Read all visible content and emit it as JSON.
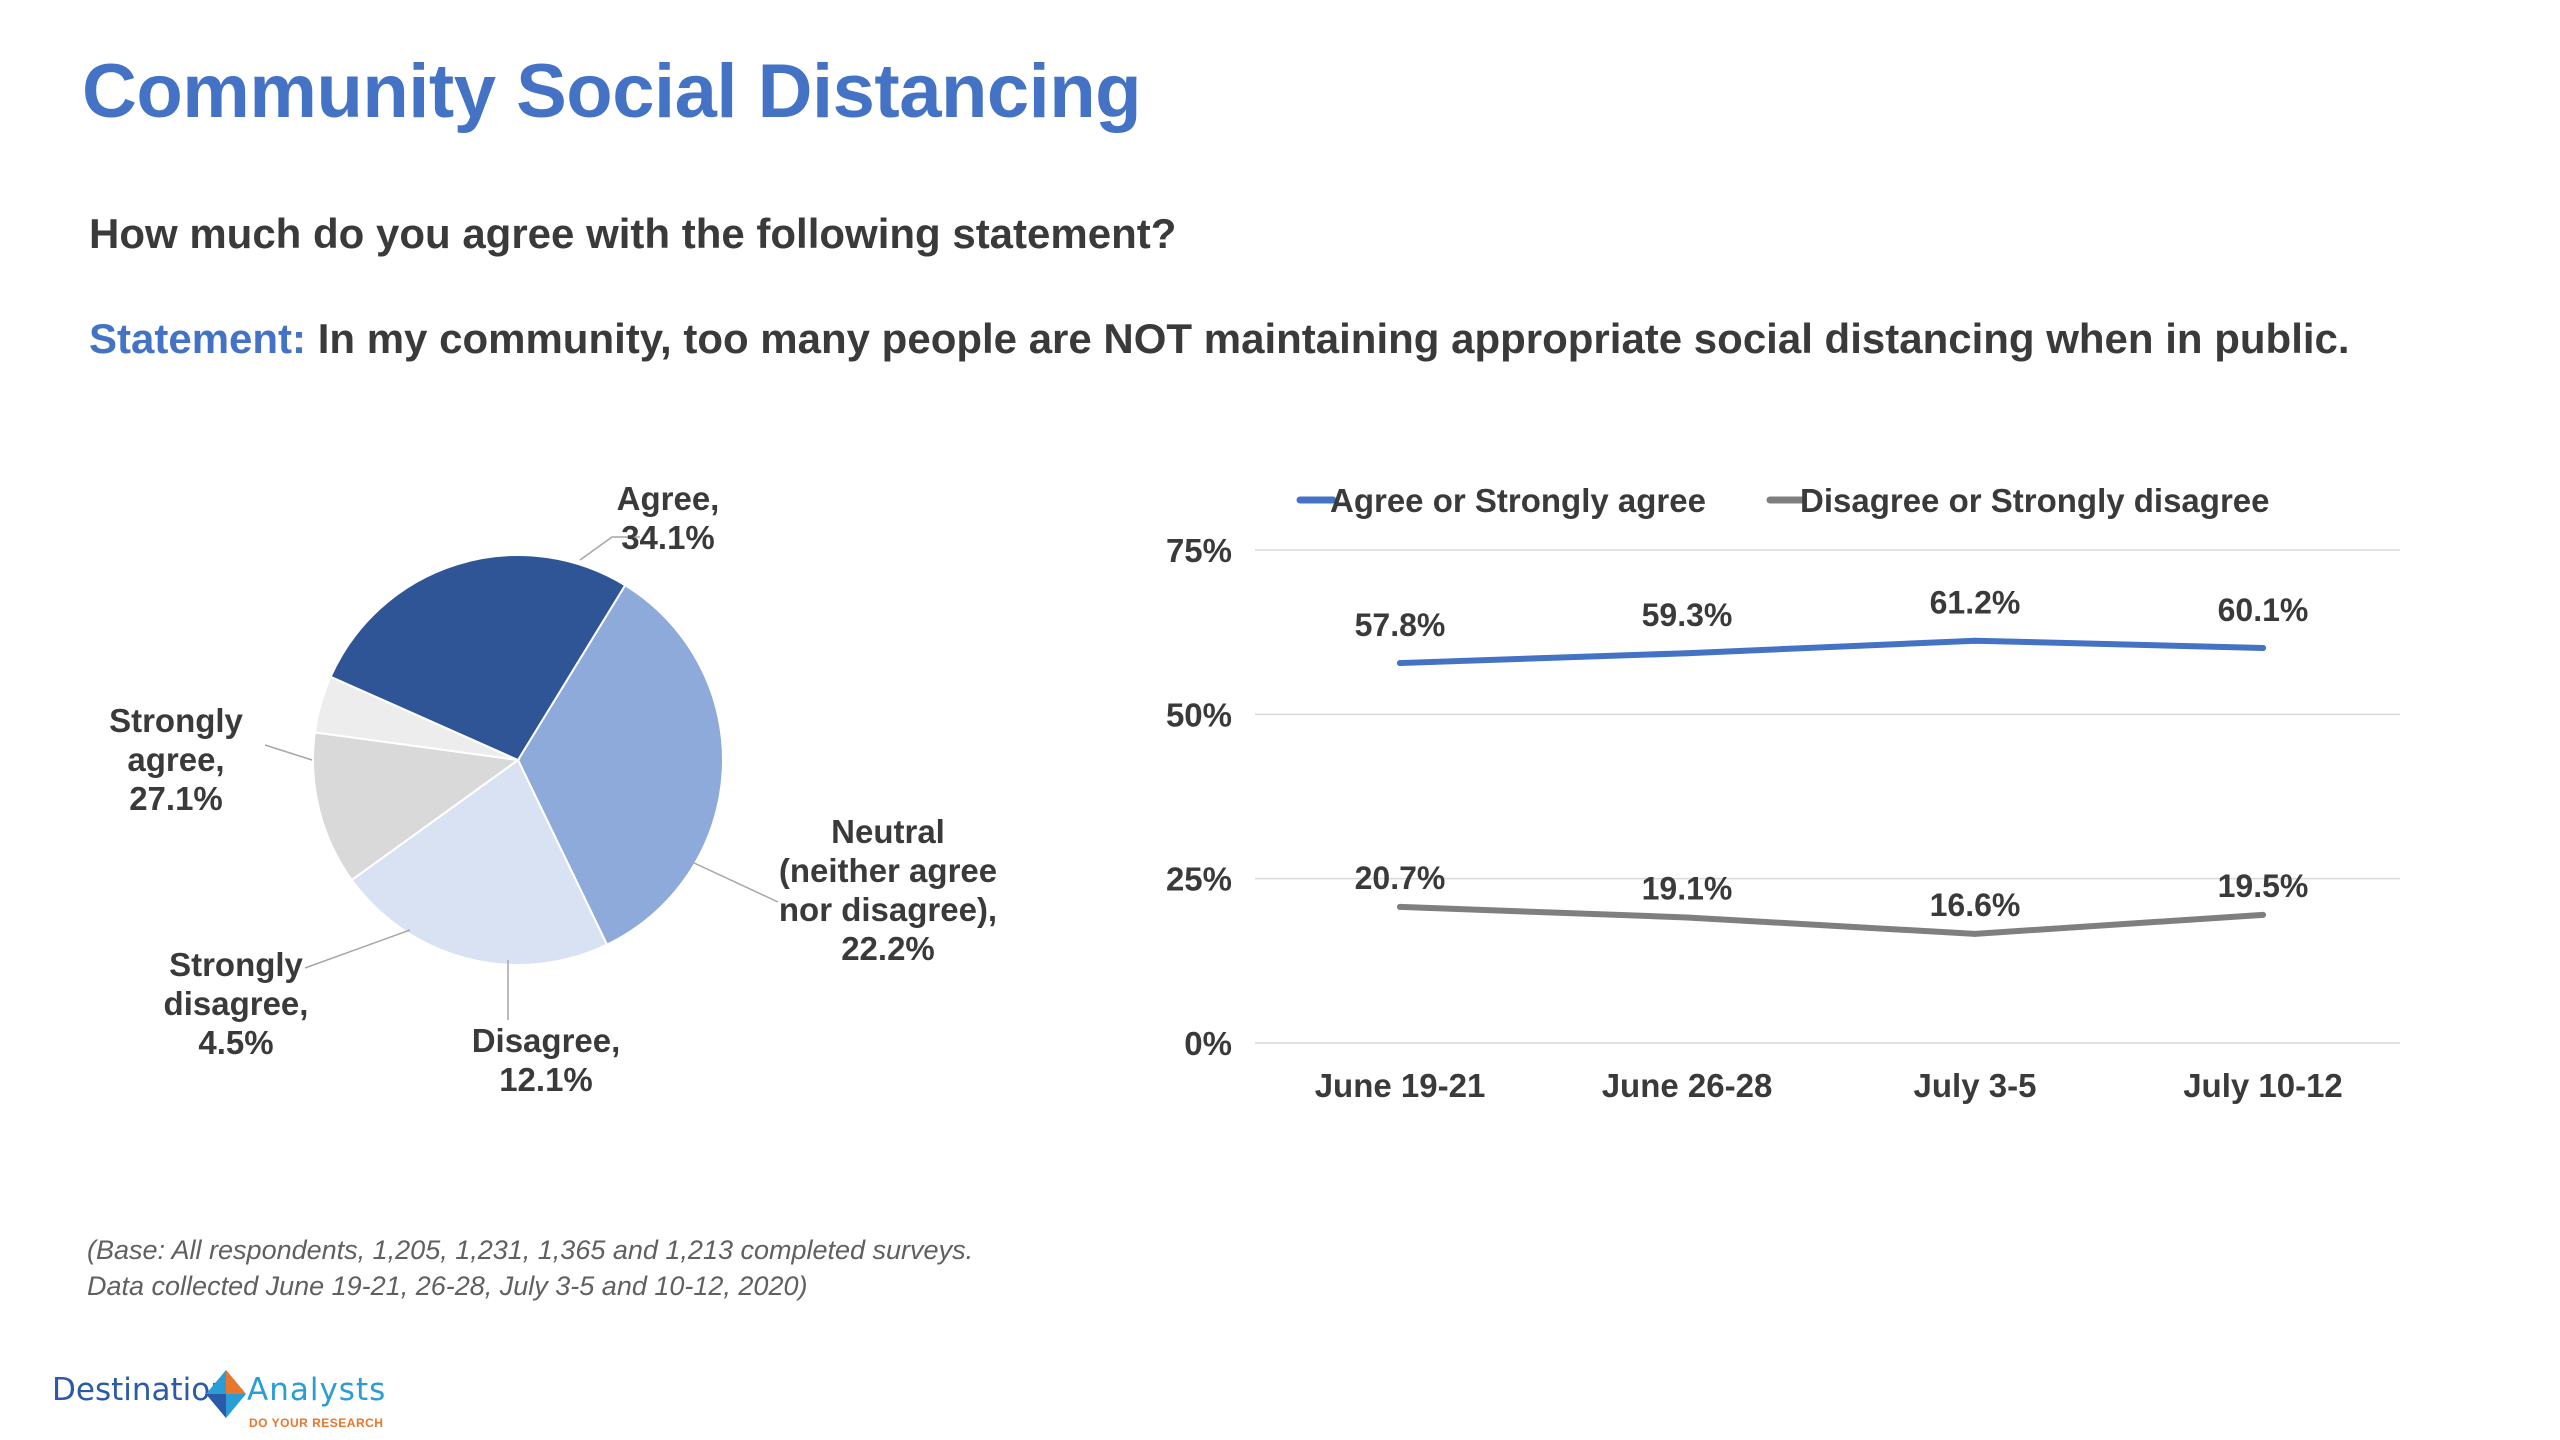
{
  "header": {
    "title": "Community Social Distancing",
    "question": "How much do you agree with the following statement?",
    "statement_label": "Statement:",
    "statement_text": " In my community, too many people are NOT maintaining appropriate social distancing when in public."
  },
  "footnote": {
    "line1": "(Base: All respondents, 1,205, 1,231, 1,365 and 1,213 completed surveys.",
    "line2": "Data collected June 19-21, 26-28, July 3-5 and 10-12, 2020)"
  },
  "logo": {
    "word1": "Destination",
    "word2": "Analysts",
    "tagline": "DO YOUR RESEARCH"
  },
  "colors": {
    "title_blue": "#4472c4",
    "agree_line": "#4472c4",
    "disagree_line": "#7f7f7f"
  },
  "chart_data": [
    {
      "type": "pie",
      "slices": [
        {
          "label": "Agree, 34.1%",
          "value": 34.1,
          "color": "#8eaadb"
        },
        {
          "label": "Neutral (neither agree nor disagree), 22.2%",
          "value": 22.2,
          "color": "#d9e2f3"
        },
        {
          "label": "Disagree, 12.1%",
          "value": 12.1,
          "color": "#d9d9d9"
        },
        {
          "label": "Strongly disagree, 4.5%",
          "value": 4.5,
          "color": "#ededed"
        },
        {
          "label": "Strongly agree, 27.1%",
          "value": 27.1,
          "color": "#2f5597"
        }
      ],
      "label_lines": {
        "agree": [
          "Agree,",
          "34.1%"
        ],
        "neutral": [
          "Neutral",
          "(neither agree",
          "nor disagree),",
          "22.2%"
        ],
        "disagree": [
          "Disagree,",
          "12.1%"
        ],
        "strongly_disagree": [
          "Strongly",
          "disagree,",
          "4.5%"
        ],
        "strongly_agree": [
          "Strongly",
          "agree,",
          "27.1%"
        ]
      }
    },
    {
      "type": "line",
      "categories": [
        "June 19-21",
        "June 26-28",
        "July 3-5",
        "July 10-12"
      ],
      "series": [
        {
          "name": "Agree or Strongly agree",
          "values": [
            57.8,
            59.3,
            61.2,
            60.1
          ],
          "labels": [
            "57.8%",
            "59.3%",
            "61.2%",
            "60.1%"
          ],
          "color": "#4472c4"
        },
        {
          "name": "Disagree or Strongly disagree",
          "values": [
            20.7,
            19.1,
            16.6,
            19.5
          ],
          "labels": [
            "20.7%",
            "19.1%",
            "16.6%",
            "19.5%"
          ],
          "color": "#7f7f7f"
        }
      ],
      "ylim": [
        0,
        75
      ],
      "yticks": [
        0,
        25,
        50,
        75
      ],
      "ytick_labels": [
        "0%",
        "25%",
        "50%",
        "75%"
      ],
      "grid": true,
      "legend": "top"
    }
  ]
}
